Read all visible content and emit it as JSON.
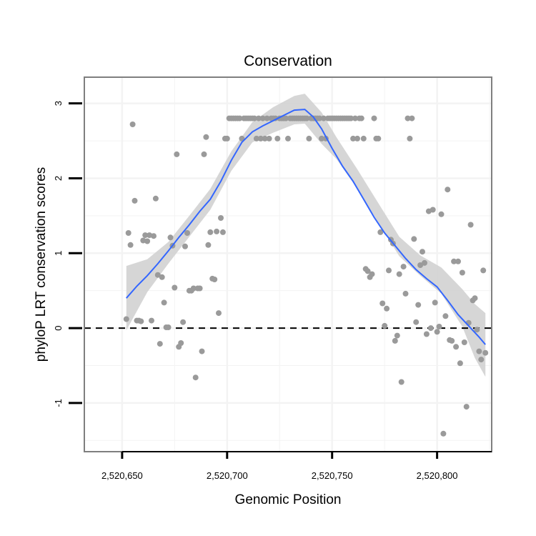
{
  "chart_data": {
    "type": "scatter",
    "title": "Conservation",
    "xlabel": "Genomic Position",
    "ylabel": "phyloP LRT conservation scores",
    "xlim": [
      2520632,
      2520826
    ],
    "ylim": [
      -1.65,
      3.35
    ],
    "x_ticks": [
      2520650,
      2520700,
      2520750,
      2520800
    ],
    "x_tick_labels": [
      "2,520,650",
      "2,520,700",
      "2,520,750",
      "2,520,800"
    ],
    "y_ticks": [
      -1,
      0,
      1,
      2,
      3
    ],
    "y_tick_labels": [
      "-1",
      "0",
      "1",
      "2",
      "3"
    ],
    "reference_line": {
      "y": 0,
      "style": "dashed"
    },
    "grid": true,
    "colors": {
      "points": "#9a9a9a",
      "smooth_line": "#3366ff",
      "confidence_band": "#cfcfcf",
      "panel_border": "#7f7f7f",
      "grid": "#f3f3f3"
    },
    "series": [
      {
        "name": "scores",
        "type": "scatter",
        "points": [
          [
            2520652,
            0.12
          ],
          [
            2520653,
            1.27
          ],
          [
            2520654,
            1.11
          ],
          [
            2520655,
            2.72
          ],
          [
            2520656,
            1.7
          ],
          [
            2520657,
            0.1
          ],
          [
            2520658,
            0.1
          ],
          [
            2520659,
            0.09
          ],
          [
            2520660,
            1.17
          ],
          [
            2520661,
            1.24
          ],
          [
            2520662,
            1.16
          ],
          [
            2520663,
            1.24
          ],
          [
            2520664,
            0.1
          ],
          [
            2520665,
            1.23
          ],
          [
            2520666,
            1.73
          ],
          [
            2520667,
            0.71
          ],
          [
            2520668,
            -0.21
          ],
          [
            2520669,
            0.68
          ],
          [
            2520670,
            0.34
          ],
          [
            2520671,
            0.01
          ],
          [
            2520672,
            0.01
          ],
          [
            2520673,
            1.21
          ],
          [
            2520674,
            1.1
          ],
          [
            2520675,
            0.54
          ],
          [
            2520676,
            2.32
          ],
          [
            2520677,
            -0.25
          ],
          [
            2520678,
            -0.2
          ],
          [
            2520679,
            0.08
          ],
          [
            2520680,
            1.09
          ],
          [
            2520681,
            1.27
          ],
          [
            2520682,
            0.5
          ],
          [
            2520683,
            0.5
          ],
          [
            2520684,
            0.53
          ],
          [
            2520685,
            -0.66
          ],
          [
            2520686,
            0.53
          ],
          [
            2520687,
            0.53
          ],
          [
            2520688,
            -0.31
          ],
          [
            2520689,
            2.32
          ],
          [
            2520690,
            2.55
          ],
          [
            2520691,
            1.11
          ],
          [
            2520692,
            1.28
          ],
          [
            2520693,
            0.66
          ],
          [
            2520694,
            0.65
          ],
          [
            2520695,
            1.29
          ],
          [
            2520696,
            0.2
          ],
          [
            2520697,
            1.47
          ],
          [
            2520698,
            1.28
          ],
          [
            2520699,
            2.53
          ],
          [
            2520700,
            2.53
          ],
          [
            2520701,
            2.8
          ],
          [
            2520702,
            2.8
          ],
          [
            2520703,
            2.8
          ],
          [
            2520704,
            2.8
          ],
          [
            2520705,
            2.8
          ],
          [
            2520706,
            2.8
          ],
          [
            2520707,
            2.53
          ],
          [
            2520708,
            2.8
          ],
          [
            2520709,
            2.8
          ],
          [
            2520710,
            2.8
          ],
          [
            2520711,
            2.8
          ],
          [
            2520712,
            2.8
          ],
          [
            2520713,
            2.8
          ],
          [
            2520714,
            2.53
          ],
          [
            2520715,
            2.8
          ],
          [
            2520716,
            2.53
          ],
          [
            2520717,
            2.8
          ],
          [
            2520718,
            2.53
          ],
          [
            2520719,
            2.8
          ],
          [
            2520720,
            2.53
          ],
          [
            2520721,
            2.8
          ],
          [
            2520722,
            2.8
          ],
          [
            2520723,
            2.8
          ],
          [
            2520724,
            2.53
          ],
          [
            2520725,
            2.8
          ],
          [
            2520726,
            2.8
          ],
          [
            2520727,
            2.8
          ],
          [
            2520728,
            2.8
          ],
          [
            2520729,
            2.53
          ],
          [
            2520730,
            2.8
          ],
          [
            2520731,
            2.8
          ],
          [
            2520732,
            2.8
          ],
          [
            2520733,
            2.8
          ],
          [
            2520734,
            2.8
          ],
          [
            2520735,
            2.8
          ],
          [
            2520736,
            2.8
          ],
          [
            2520737,
            2.8
          ],
          [
            2520738,
            2.8
          ],
          [
            2520739,
            2.53
          ],
          [
            2520740,
            2.8
          ],
          [
            2520741,
            2.8
          ],
          [
            2520742,
            2.8
          ],
          [
            2520743,
            2.8
          ],
          [
            2520744,
            2.8
          ],
          [
            2520745,
            2.53
          ],
          [
            2520746,
            2.8
          ],
          [
            2520747,
            2.53
          ],
          [
            2520748,
            2.8
          ],
          [
            2520749,
            2.8
          ],
          [
            2520750,
            2.8
          ],
          [
            2520751,
            2.8
          ],
          [
            2520752,
            2.8
          ],
          [
            2520753,
            2.8
          ],
          [
            2520754,
            2.8
          ],
          [
            2520755,
            2.8
          ],
          [
            2520756,
            2.8
          ],
          [
            2520757,
            2.8
          ],
          [
            2520758,
            2.8
          ],
          [
            2520759,
            2.8
          ],
          [
            2520760,
            2.53
          ],
          [
            2520761,
            2.8
          ],
          [
            2520762,
            2.53
          ],
          [
            2520763,
            2.8
          ],
          [
            2520764,
            2.8
          ],
          [
            2520765,
            2.53
          ],
          [
            2520766,
            0.79
          ],
          [
            2520767,
            0.76
          ],
          [
            2520768,
            0.68
          ],
          [
            2520769,
            0.72
          ],
          [
            2520770,
            2.8
          ],
          [
            2520771,
            2.53
          ],
          [
            2520772,
            2.53
          ],
          [
            2520773,
            1.28
          ],
          [
            2520774,
            0.33
          ],
          [
            2520775,
            0.03
          ],
          [
            2520776,
            0.26
          ],
          [
            2520777,
            0.77
          ],
          [
            2520778,
            1.18
          ],
          [
            2520779,
            1.13
          ],
          [
            2520780,
            -0.17
          ],
          [
            2520781,
            -0.1
          ],
          [
            2520782,
            0.72
          ],
          [
            2520783,
            -0.72
          ],
          [
            2520784,
            0.82
          ],
          [
            2520785,
            0.46
          ],
          [
            2520786,
            2.8
          ],
          [
            2520787,
            2.53
          ],
          [
            2520788,
            2.8
          ],
          [
            2520789,
            1.19
          ],
          [
            2520790,
            0.08
          ],
          [
            2520791,
            0.31
          ],
          [
            2520792,
            0.84
          ],
          [
            2520793,
            1.02
          ],
          [
            2520794,
            0.87
          ],
          [
            2520795,
            -0.08
          ],
          [
            2520796,
            1.56
          ],
          [
            2520797,
            0.0
          ],
          [
            2520798,
            1.58
          ],
          [
            2520799,
            0.34
          ],
          [
            2520800,
            -0.05
          ],
          [
            2520801,
            0.02
          ],
          [
            2520802,
            1.52
          ],
          [
            2520803,
            -1.41
          ],
          [
            2520804,
            0.16
          ],
          [
            2520805,
            1.85
          ],
          [
            2520806,
            -0.16
          ],
          [
            2520807,
            -0.17
          ],
          [
            2520808,
            0.89
          ],
          [
            2520809,
            -0.25
          ],
          [
            2520810,
            0.89
          ],
          [
            2520811,
            -0.47
          ],
          [
            2520812,
            0.74
          ],
          [
            2520813,
            -0.19
          ],
          [
            2520814,
            -1.05
          ],
          [
            2520815,
            0.07
          ],
          [
            2520816,
            1.38
          ],
          [
            2520817,
            0.37
          ],
          [
            2520818,
            0.4
          ],
          [
            2520819,
            -0.02
          ],
          [
            2520820,
            -0.31
          ],
          [
            2520821,
            -0.42
          ],
          [
            2520822,
            0.77
          ],
          [
            2520823,
            -0.33
          ]
        ]
      },
      {
        "name": "loess fit",
        "type": "line",
        "points": [
          [
            2520652,
            0.4
          ],
          [
            2520657,
            0.56
          ],
          [
            2520662,
            0.7
          ],
          [
            2520667,
            0.86
          ],
          [
            2520672,
            1.03
          ],
          [
            2520677,
            1.21
          ],
          [
            2520682,
            1.38
          ],
          [
            2520687,
            1.56
          ],
          [
            2520692,
            1.72
          ],
          [
            2520697,
            1.96
          ],
          [
            2520702,
            2.24
          ],
          [
            2520707,
            2.48
          ],
          [
            2520712,
            2.62
          ],
          [
            2520717,
            2.7
          ],
          [
            2520722,
            2.77
          ],
          [
            2520727,
            2.84
          ],
          [
            2520732,
            2.91
          ],
          [
            2520737,
            2.92
          ],
          [
            2520741,
            2.82
          ],
          [
            2520745,
            2.66
          ],
          [
            2520750,
            2.4
          ],
          [
            2520755,
            2.16
          ],
          [
            2520760,
            1.96
          ],
          [
            2520765,
            1.72
          ],
          [
            2520770,
            1.48
          ],
          [
            2520775,
            1.27
          ],
          [
            2520780,
            1.1
          ],
          [
            2520785,
            0.93
          ],
          [
            2520790,
            0.78
          ],
          [
            2520795,
            0.66
          ],
          [
            2520800,
            0.55
          ],
          [
            2520805,
            0.37
          ],
          [
            2520810,
            0.18
          ],
          [
            2520815,
            0.03
          ],
          [
            2520820,
            -0.12
          ],
          [
            2520823,
            -0.22
          ]
        ]
      },
      {
        "name": "confidence interval",
        "type": "band",
        "x": [
          2520652,
          2520662,
          2520672,
          2520682,
          2520692,
          2520702,
          2520712,
          2520722,
          2520732,
          2520737,
          2520745,
          2520752,
          2520762,
          2520772,
          2520782,
          2520792,
          2520802,
          2520812,
          2520818,
          2520823
        ],
        "upper": [
          0.83,
          0.92,
          1.15,
          1.5,
          1.86,
          2.36,
          2.75,
          2.95,
          3.1,
          3.13,
          2.88,
          2.55,
          2.12,
          1.67,
          1.22,
          0.97,
          0.81,
          0.52,
          0.32,
          0.2
        ],
        "lower": [
          -0.03,
          0.48,
          0.86,
          1.22,
          1.58,
          2.1,
          2.48,
          2.61,
          2.72,
          2.73,
          2.46,
          2.26,
          1.86,
          1.41,
          0.96,
          0.7,
          0.46,
          0.02,
          -0.4,
          -0.65
        ]
      }
    ]
  }
}
